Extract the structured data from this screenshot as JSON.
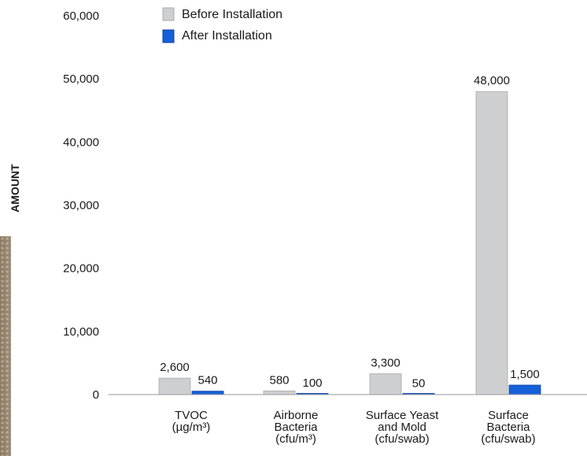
{
  "chart_data": {
    "type": "bar",
    "title": "",
    "xlabel": "",
    "ylabel": "AMOUNT",
    "ylim": [
      0,
      60000
    ],
    "yticks": [
      0,
      10000,
      20000,
      30000,
      40000,
      50000,
      60000
    ],
    "ytick_labels": [
      "0",
      "10,000",
      "20,000",
      "30,000",
      "40,000",
      "50,000",
      "60,000"
    ],
    "grid": false,
    "legend_position": "top-left",
    "categories": [
      [
        "TVOC",
        "(µg/m³)"
      ],
      [
        "Airborne",
        "Bacteria",
        "(cfu/m³)"
      ],
      [
        "Surface Yeast",
        "and Mold",
        "(cfu/swab)"
      ],
      [
        "Surface",
        "Bacteria",
        "(cfu/swab)"
      ]
    ],
    "series": [
      {
        "name": "Before Installation",
        "color": "#cdcfd1",
        "edge_color": "#a9abad",
        "values": [
          2600,
          580,
          3300,
          48000
        ],
        "labels": [
          "2,600",
          "580",
          "3,300",
          "48,000"
        ]
      },
      {
        "name": "After Installation",
        "color": "#1560d8",
        "edge_color": "#0c3fa3",
        "values": [
          540,
          100,
          50,
          1500
        ],
        "labels": [
          "540",
          "100",
          "50",
          "1,500"
        ]
      }
    ],
    "axis_color": "#9a9a9a"
  }
}
